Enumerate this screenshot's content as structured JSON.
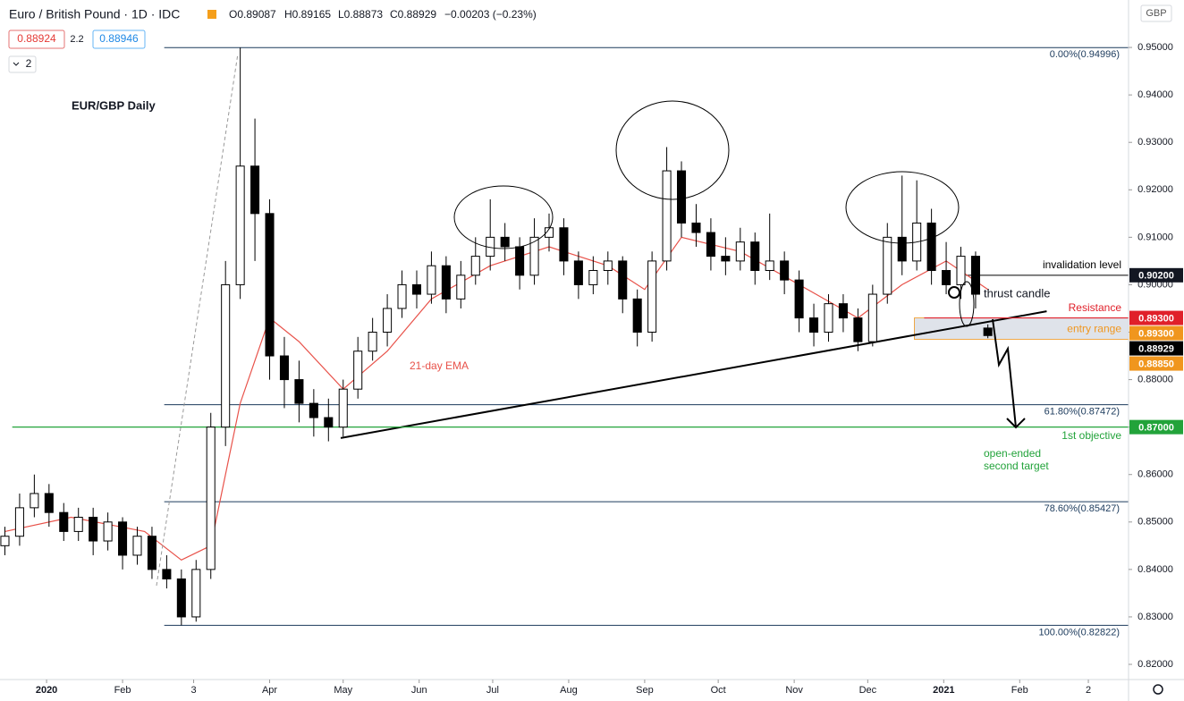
{
  "header": {
    "symbol": "Euro / British Pound · 1D · IDC",
    "ohlc": [
      "O0.89087",
      "H0.89165",
      "L0.88873",
      "C0.88929",
      "−0.00203 (−0.23%)"
    ],
    "bid": "0.88924",
    "spread": "2.2",
    "ask": "0.88946",
    "indicators": "2",
    "currency": "GBP"
  },
  "chart_data": {
    "type": "candlestick",
    "title": "EUR/GBP Daily",
    "x": [
      -17,
      -11,
      -5,
      1,
      7,
      13,
      19,
      25,
      31,
      37,
      43,
      49,
      55,
      61,
      67,
      73,
      79,
      85,
      91,
      97,
      103,
      109,
      115,
      121,
      127,
      133,
      139,
      145,
      151,
      157,
      163,
      169,
      175,
      181,
      187,
      193,
      199,
      205,
      211,
      217,
      223,
      229,
      235,
      241,
      247,
      253,
      259,
      265,
      271,
      277,
      283,
      289,
      295,
      301,
      307,
      313,
      319,
      325,
      331,
      337,
      343,
      349,
      355,
      361,
      367,
      373,
      379,
      384
    ],
    "open": [
      0.845,
      0.847,
      0.853,
      0.856,
      0.852,
      0.848,
      0.851,
      0.846,
      0.85,
      0.843,
      0.847,
      0.84,
      0.838,
      0.83,
      0.84,
      0.87,
      0.9,
      0.925,
      0.915,
      0.885,
      0.88,
      0.875,
      0.872,
      0.87,
      0.878,
      0.886,
      0.89,
      0.895,
      0.9,
      0.898,
      0.904,
      0.897,
      0.902,
      0.906,
      0.91,
      0.908,
      0.902,
      0.91,
      0.912,
      0.905,
      0.9,
      0.903,
      0.905,
      0.897,
      0.89,
      0.905,
      0.924,
      0.913,
      0.911,
      0.906,
      0.905,
      0.909,
      0.903,
      0.905,
      0.901,
      0.893,
      0.89,
      0.896,
      0.893,
      0.888,
      0.898,
      0.91,
      0.905,
      0.913,
      0.903,
      0.9,
      0.906,
      0.89087
    ],
    "high": [
      0.849,
      0.856,
      0.86,
      0.858,
      0.854,
      0.853,
      0.853,
      0.852,
      0.851,
      0.849,
      0.849,
      0.843,
      0.84,
      0.842,
      0.873,
      0.905,
      0.94996,
      0.935,
      0.918,
      0.889,
      0.884,
      0.878,
      0.876,
      0.88,
      0.889,
      0.893,
      0.898,
      0.903,
      0.903,
      0.907,
      0.906,
      0.905,
      0.91,
      0.918,
      0.913,
      0.91,
      0.914,
      0.915,
      0.914,
      0.907,
      0.906,
      0.907,
      0.906,
      0.899,
      0.907,
      0.929,
      0.926,
      0.917,
      0.914,
      0.91,
      0.912,
      0.911,
      0.915,
      0.907,
      0.903,
      0.896,
      0.898,
      0.898,
      0.895,
      0.9,
      0.913,
      0.923,
      0.922,
      0.916,
      0.909,
      0.908,
      0.907,
      0.89165
    ],
    "low": [
      0.843,
      0.845,
      0.851,
      0.849,
      0.846,
      0.846,
      0.843,
      0.844,
      0.84,
      0.841,
      0.838,
      0.836,
      0.82822,
      0.829,
      0.838,
      0.866,
      0.897,
      0.905,
      0.88,
      0.874,
      0.871,
      0.868,
      0.867,
      0.868,
      0.876,
      0.884,
      0.887,
      0.893,
      0.895,
      0.896,
      0.894,
      0.895,
      0.9,
      0.903,
      0.905,
      0.899,
      0.9,
      0.907,
      0.902,
      0.897,
      0.898,
      0.9,
      0.894,
      0.887,
      0.888,
      0.903,
      0.91,
      0.908,
      0.903,
      0.902,
      0.903,
      0.9,
      0.901,
      0.898,
      0.89,
      0.887,
      0.888,
      0.89,
      0.886,
      0.887,
      0.896,
      0.902,
      0.903,
      0.9,
      0.898,
      0.897,
      0.895,
      0.88873
    ],
    "close": [
      0.847,
      0.853,
      0.856,
      0.852,
      0.848,
      0.851,
      0.846,
      0.85,
      0.843,
      0.847,
      0.84,
      0.838,
      0.83,
      0.84,
      0.87,
      0.9,
      0.925,
      0.915,
      0.885,
      0.88,
      0.875,
      0.872,
      0.87,
      0.878,
      0.886,
      0.89,
      0.895,
      0.9,
      0.898,
      0.904,
      0.897,
      0.902,
      0.906,
      0.91,
      0.908,
      0.902,
      0.91,
      0.912,
      0.905,
      0.9,
      0.903,
      0.905,
      0.897,
      0.89,
      0.905,
      0.924,
      0.913,
      0.911,
      0.906,
      0.905,
      0.909,
      0.903,
      0.905,
      0.901,
      0.893,
      0.89,
      0.896,
      0.893,
      0.888,
      0.898,
      0.91,
      0.905,
      0.913,
      0.903,
      0.9,
      0.906,
      0.898,
      0.88929
    ],
    "up_color": "#ffffff",
    "down_color": "#000000",
    "xlim": [
      -19,
      441.4
    ],
    "ylim": [
      0.8168,
      0.96
    ],
    "xticks": [
      {
        "value": 0,
        "label": "2020"
      },
      {
        "value": 31,
        "label": "Feb"
      },
      {
        "value": 60,
        "label": "3"
      },
      {
        "value": 91,
        "label": "Apr"
      },
      {
        "value": 121,
        "label": "May"
      },
      {
        "value": 152,
        "label": "Jun"
      },
      {
        "value": 182,
        "label": "Jul"
      },
      {
        "value": 213,
        "label": "Aug"
      },
      {
        "value": 244,
        "label": "Sep"
      },
      {
        "value": 274,
        "label": "Oct"
      },
      {
        "value": 305,
        "label": "Nov"
      },
      {
        "value": 335,
        "label": "Dec"
      },
      {
        "value": 366,
        "label": "2021"
      },
      {
        "value": 397,
        "label": "Feb"
      },
      {
        "value": 425,
        "label": "2"
      }
    ],
    "yticks": [
      {
        "value": 0.82,
        "label": "0.82000"
      },
      {
        "value": 0.83,
        "label": "0.83000"
      },
      {
        "value": 0.84,
        "label": "0.84000"
      },
      {
        "value": 0.85,
        "label": "0.85000"
      },
      {
        "value": 0.86,
        "label": "0.86000"
      },
      {
        "value": 0.87,
        "label": "0.87000"
      },
      {
        "value": 0.88,
        "label": "0.88000"
      },
      {
        "value": 0.89,
        "label": "0.89000"
      },
      {
        "value": 0.9,
        "label": "0.90000"
      },
      {
        "value": 0.91,
        "label": "0.91000"
      },
      {
        "value": 0.92,
        "label": "0.92000"
      },
      {
        "value": 0.93,
        "label": "0.93000"
      },
      {
        "value": 0.94,
        "label": "0.94000"
      },
      {
        "value": 0.95,
        "label": "0.95000"
      }
    ],
    "ema": {
      "name": "21-day EMA",
      "color": "#e8524a",
      "x": [
        -17,
        10,
        40,
        55,
        67,
        79,
        91,
        103,
        121,
        139,
        157,
        181,
        205,
        229,
        244,
        259,
        283,
        307,
        331,
        349,
        367,
        384
      ],
      "values": [
        0.848,
        0.851,
        0.848,
        0.842,
        0.845,
        0.875,
        0.893,
        0.888,
        0.878,
        0.886,
        0.897,
        0.904,
        0.908,
        0.904,
        0.899,
        0.91,
        0.907,
        0.9,
        0.893,
        0.9,
        0.905,
        0.899
      ]
    },
    "fib": {
      "color": "#1b3a5c",
      "start": 48,
      "levels": [
        {
          "value": 0.94996,
          "label": "0.00%(0.94996)"
        },
        {
          "value": 0.87472,
          "label": "61.80%(0.87472)"
        },
        {
          "value": 0.85427,
          "label": "78.60%(0.85427)"
        },
        {
          "value": 0.82822,
          "label": "100.00%(0.82822)"
        }
      ]
    },
    "trendline": {
      "x": [
        120,
        408
      ],
      "values": [
        0.8677,
        0.8944
      ]
    },
    "levels": [
      {
        "text": "invalidation level",
        "value": 0.902,
        "label": "0.90200",
        "color": "#000000",
        "start": 375
      },
      {
        "text": "Resistance",
        "value": 0.893,
        "label": "0.89300",
        "color": "#e0202a",
        "start": 358
      },
      {
        "text": "1st objective",
        "value": 0.87,
        "label": "0.87000",
        "color": "#22a33a",
        "start": -14
      }
    ],
    "entry_range": {
      "text": "entry range",
      "values": [
        0.893,
        0.8885
      ],
      "labels": [
        "0.89300",
        "0.88850"
      ],
      "color": "#f0961e",
      "start": 354
    },
    "notes": {
      "thrust": "thrust candle",
      "target": [
        "open-ended",
        "second target"
      ]
    }
  }
}
